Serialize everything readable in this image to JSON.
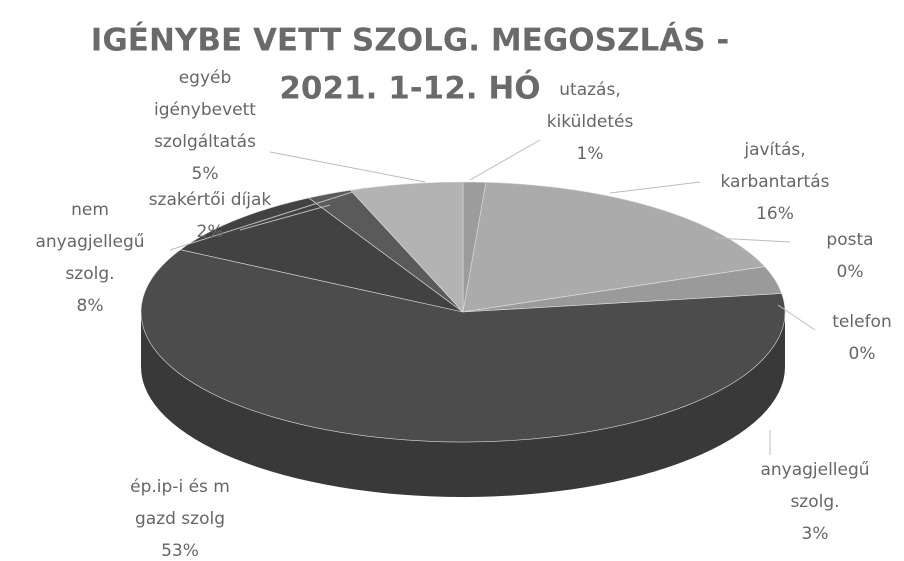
{
  "chart_data": {
    "type": "pie3d",
    "title": [
      "IGÉNYBE VETT SZOLG. MEGOSZLÁS -",
      "2021. 1-12. HÓ"
    ],
    "categories": [
      [
        "utazás,",
        "kiküldetés"
      ],
      [
        "javítás,",
        "karbantartás"
      ],
      [
        "posta"
      ],
      [
        "telefon"
      ],
      [
        "anyagjellegű",
        "szolg."
      ],
      [
        "ép.ip-i és m",
        "gazd szolg"
      ],
      [
        "nem",
        "anyagjellegű",
        "szolg."
      ],
      [
        "szakértői díjak"
      ],
      [
        "egyéb",
        "igénybevett",
        "szolgáltatás"
      ]
    ],
    "values": [
      1,
      16,
      0,
      0,
      3,
      53,
      8,
      2,
      5
    ],
    "value_labels": [
      "1%",
      "16%",
      "0%",
      "0%",
      "3%",
      "53%",
      "8%",
      "2%",
      "5%"
    ],
    "colors": [
      "#9c9c9c",
      "#ababab",
      "#8a8a8a",
      "#7a7a7a",
      "#9a9a9a",
      "#4c4c4c",
      "#424242",
      "#5a5a5a",
      "#b3b3b3"
    ]
  }
}
